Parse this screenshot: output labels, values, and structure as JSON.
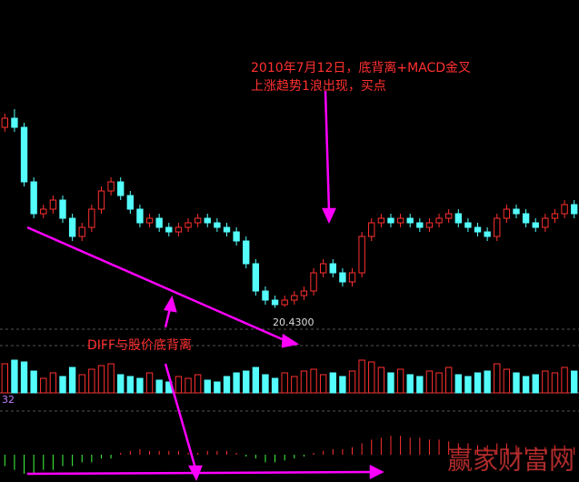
{
  "chart_data": {
    "type": "candlestick",
    "annotations": [
      "2010年7月12日，底背离+MACD金叉",
      "上涨趋势1浪出现，买点",
      "DIFF与股价底背离"
    ],
    "low_label": "20.4300",
    "indicator_label": "32",
    "watermark": "赢家财富网",
    "ylim": [
      20,
      25
    ],
    "up_color": "#ff3030",
    "down_color": "#54fcfc",
    "open": [
      24.4,
      24.6,
      24.4,
      23.2,
      22.5,
      22.6,
      22.8,
      22.4,
      22.0,
      22.2,
      22.6,
      23.0,
      23.2,
      22.9,
      22.6,
      22.3,
      22.4,
      22.2,
      22.1,
      22.2,
      22.3,
      22.4,
      22.3,
      22.2,
      22.1,
      21.9,
      21.4,
      20.8,
      20.6,
      20.5,
      20.6,
      20.7,
      20.8,
      21.2,
      21.4,
      21.2,
      21.0,
      21.2,
      22.0,
      22.3,
      22.4,
      22.3,
      22.4,
      22.3,
      22.2,
      22.3,
      22.4,
      22.5,
      22.3,
      22.2,
      22.1,
      22.0,
      22.4,
      22.6,
      22.5,
      22.3,
      22.2,
      22.4,
      22.5,
      22.7
    ],
    "close": [
      24.6,
      24.4,
      23.2,
      22.5,
      22.6,
      22.8,
      22.4,
      22.0,
      22.2,
      22.6,
      23.0,
      23.2,
      22.9,
      22.6,
      22.3,
      22.4,
      22.2,
      22.1,
      22.2,
      22.3,
      22.4,
      22.3,
      22.2,
      22.1,
      21.9,
      21.4,
      20.8,
      20.6,
      20.5,
      20.6,
      20.7,
      20.8,
      21.2,
      21.4,
      21.2,
      21.0,
      21.2,
      22.0,
      22.3,
      22.4,
      22.3,
      22.4,
      22.3,
      22.2,
      22.3,
      22.4,
      22.5,
      22.3,
      22.2,
      22.1,
      22.0,
      22.4,
      22.6,
      22.5,
      22.3,
      22.2,
      22.4,
      22.5,
      22.7,
      22.5
    ],
    "high": [
      24.7,
      24.8,
      24.5,
      23.3,
      22.7,
      22.9,
      22.9,
      22.5,
      22.3,
      22.7,
      23.1,
      23.3,
      23.3,
      23.0,
      22.7,
      22.5,
      22.5,
      22.3,
      22.3,
      22.4,
      22.5,
      22.5,
      22.4,
      22.3,
      22.2,
      22.0,
      21.5,
      20.9,
      20.7,
      20.7,
      20.8,
      20.9,
      21.3,
      21.5,
      21.5,
      21.3,
      21.3,
      22.1,
      22.4,
      22.5,
      22.5,
      22.5,
      22.5,
      22.4,
      22.4,
      22.5,
      22.6,
      22.6,
      22.4,
      22.3,
      22.2,
      22.5,
      22.7,
      22.7,
      22.6,
      22.4,
      22.5,
      22.6,
      22.8,
      22.8
    ],
    "low": [
      24.3,
      24.3,
      23.1,
      22.4,
      22.4,
      22.5,
      22.3,
      21.9,
      21.9,
      22.1,
      22.5,
      22.9,
      22.8,
      22.5,
      22.2,
      22.2,
      22.1,
      22.0,
      22.0,
      22.1,
      22.2,
      22.2,
      22.1,
      22.0,
      21.8,
      21.3,
      20.7,
      20.5,
      20.43,
      20.45,
      20.5,
      20.6,
      20.7,
      21.1,
      21.1,
      20.9,
      20.9,
      21.1,
      21.9,
      22.2,
      22.2,
      22.2,
      22.2,
      22.1,
      22.1,
      22.2,
      22.3,
      22.2,
      22.1,
      22.0,
      21.9,
      21.9,
      22.3,
      22.4,
      22.2,
      22.1,
      22.1,
      22.3,
      22.4,
      22.4
    ],
    "volume": [
      80,
      90,
      85,
      60,
      40,
      55,
      45,
      70,
      50,
      65,
      75,
      80,
      50,
      45,
      40,
      55,
      35,
      30,
      45,
      40,
      50,
      35,
      30,
      45,
      55,
      60,
      70,
      50,
      40,
      55,
      45,
      60,
      65,
      50,
      55,
      45,
      60,
      90,
      85,
      70,
      55,
      65,
      50,
      45,
      60,
      55,
      70,
      50,
      45,
      55,
      60,
      80,
      65,
      55,
      45,
      50,
      60,
      55,
      70,
      60
    ],
    "vlim": [
      0,
      100
    ],
    "macd": [
      -3,
      -4,
      -5,
      -5,
      -4,
      -4,
      -3,
      -3,
      -2,
      -2,
      -1,
      -1,
      0.5,
      1,
      1.5,
      1,
      1,
      1,
      1,
      0.5,
      0.5,
      1,
      1,
      1,
      0.5,
      -0.5,
      -1,
      -2,
      -2,
      -1.5,
      -1,
      -0.5,
      0.5,
      1,
      1.5,
      1.5,
      2,
      3,
      4,
      4.5,
      5,
      5,
      4.5,
      4.5,
      4,
      4,
      3.5,
      3,
      3,
      2.5,
      2.5,
      3,
      3,
      2.5,
      2,
      2,
      2,
      2.5,
      2.5,
      2
    ],
    "macd_lim": [
      -6,
      6
    ]
  }
}
